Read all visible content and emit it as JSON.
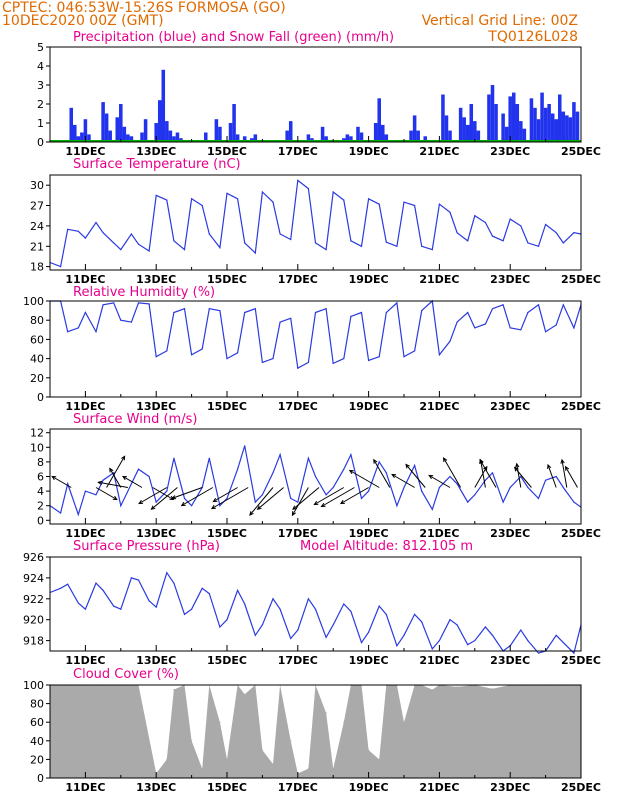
{
  "header": {
    "line1": "CPTEC:   046:53W-15:26S   FORMOSA (GO)",
    "line2": "10DEC2020 00Z (GMT)",
    "right1": "Vertical Grid Line: 00Z",
    "right2": "TQ0126L028"
  },
  "x_ticks": [
    "11DEC",
    "13DEC",
    "15DEC",
    "17DEC",
    "19DEC",
    "21DEC",
    "23DEC",
    "25DEC"
  ],
  "colors": {
    "precip": "#2233ee",
    "snow": "#00aa00",
    "line": "#2a3ae0",
    "cloud": "#aaaaaa",
    "title": "#e8008c",
    "header": "#e06a00",
    "wind_barb": "#000000"
  },
  "chart_data": [
    {
      "type": "bar",
      "title": "Precipitation (blue) and Snow Fall (green) (mm/h)",
      "ylim": [
        0,
        5
      ],
      "yticks": [
        0,
        1,
        2,
        3,
        4,
        5
      ],
      "x_range_days": [
        10,
        25
      ],
      "series": [
        {
          "name": "Precipitation (blue)",
          "x_days": [
            10.6,
            10.7,
            10.8,
            10.9,
            11.0,
            11.1,
            11.5,
            11.6,
            11.7,
            11.9,
            12.0,
            12.1,
            12.2,
            12.3,
            12.6,
            12.7,
            13.0,
            13.1,
            13.2,
            13.3,
            13.4,
            13.5,
            13.6,
            13.7,
            14.4,
            14.7,
            14.8,
            15.1,
            15.2,
            15.3,
            15.5,
            15.7,
            15.8,
            16.7,
            16.8,
            17.3,
            17.4,
            17.7,
            17.8,
            18.3,
            18.4,
            18.5,
            18.7,
            18.8,
            19.2,
            19.3,
            19.4,
            19.5,
            20.2,
            20.3,
            20.4,
            20.6,
            21.1,
            21.2,
            21.3,
            21.6,
            21.7,
            21.8,
            21.9,
            22.0,
            22.1,
            22.4,
            22.5,
            22.6,
            22.8,
            22.9,
            23.0,
            23.1,
            23.2,
            23.3,
            23.4,
            23.6,
            23.7,
            23.8,
            23.9,
            24.0,
            24.1,
            24.2,
            24.3,
            24.4,
            24.5,
            24.6,
            24.7,
            24.8,
            24.9
          ],
          "values": [
            1.8,
            0.9,
            0.3,
            0.5,
            1.2,
            0.4,
            2.1,
            1.5,
            0.6,
            1.3,
            2.0,
            0.8,
            0.4,
            0.3,
            0.5,
            1.2,
            1.0,
            2.2,
            3.8,
            1.1,
            0.6,
            0.3,
            0.5,
            0.2,
            0.5,
            1.2,
            0.8,
            1.0,
            2.0,
            0.4,
            0.3,
            0.2,
            0.4,
            0.6,
            1.1,
            0.4,
            0.2,
            0.8,
            0.3,
            0.2,
            0.4,
            0.3,
            0.8,
            0.5,
            1.0,
            2.3,
            0.9,
            0.4,
            0.6,
            1.4,
            0.6,
            0.3,
            2.5,
            1.4,
            0.6,
            1.8,
            1.3,
            0.9,
            2.0,
            1.1,
            0.6,
            2.5,
            3.0,
            2.0,
            1.5,
            0.8,
            2.4,
            2.6,
            2.0,
            1.1,
            0.7,
            2.3,
            1.8,
            1.2,
            2.6,
            1.8,
            2.0,
            1.5,
            1.2,
            2.5,
            1.6,
            1.4,
            1.3,
            2.1,
            1.6
          ]
        },
        {
          "name": "Snow Fall (green)",
          "x_days": [
            10.0,
            25.0
          ],
          "values": [
            0,
            0
          ]
        }
      ]
    },
    {
      "type": "line",
      "title": "Surface Temperature (nC)",
      "ylim": [
        17.5,
        31.5
      ],
      "yticks": [
        18,
        21,
        24,
        27,
        30
      ],
      "x_days": [
        10.0,
        10.3,
        10.5,
        10.8,
        11.0,
        11.3,
        11.5,
        11.8,
        12.0,
        12.3,
        12.5,
        12.8,
        13.0,
        13.3,
        13.5,
        13.8,
        14.0,
        14.3,
        14.5,
        14.8,
        15.0,
        15.3,
        15.5,
        15.8,
        16.0,
        16.3,
        16.5,
        16.8,
        17.0,
        17.3,
        17.5,
        17.8,
        18.0,
        18.3,
        18.5,
        18.8,
        19.0,
        19.3,
        19.5,
        19.8,
        20.0,
        20.3,
        20.5,
        20.8,
        21.0,
        21.3,
        21.5,
        21.8,
        22.0,
        22.3,
        22.5,
        22.8,
        23.0,
        23.3,
        23.5,
        23.8,
        24.0,
        24.3,
        24.5,
        24.8,
        25.0
      ],
      "values": [
        18.6,
        18.0,
        23.5,
        23.2,
        22.2,
        24.5,
        23.0,
        21.5,
        20.5,
        22.8,
        21.3,
        20.3,
        28.5,
        27.8,
        21.8,
        20.5,
        28.0,
        27.0,
        22.8,
        20.8,
        28.8,
        28.0,
        21.5,
        20.0,
        29.0,
        27.5,
        22.8,
        22.0,
        30.7,
        29.5,
        21.5,
        20.5,
        29.0,
        27.8,
        21.8,
        21.0,
        28.0,
        27.2,
        21.6,
        21.0,
        27.5,
        27.0,
        21.0,
        20.5,
        27.2,
        26.0,
        23.0,
        21.8,
        25.5,
        24.5,
        22.5,
        21.8,
        25.0,
        24.0,
        21.5,
        21.0,
        24.2,
        23.0,
        21.5,
        23.0,
        22.8
      ]
    },
    {
      "type": "line",
      "title": "Relative Humidity (%)",
      "ylim": [
        0,
        100
      ],
      "yticks": [
        0,
        20,
        40,
        60,
        80,
        100
      ],
      "x_days": [
        10.0,
        10.3,
        10.5,
        10.8,
        11.0,
        11.3,
        11.5,
        11.8,
        12.0,
        12.3,
        12.5,
        12.8,
        13.0,
        13.3,
        13.5,
        13.8,
        14.0,
        14.3,
        14.5,
        14.8,
        15.0,
        15.3,
        15.5,
        15.8,
        16.0,
        16.3,
        16.5,
        16.8,
        17.0,
        17.3,
        17.5,
        17.8,
        18.0,
        18.3,
        18.5,
        18.8,
        19.0,
        19.3,
        19.5,
        19.8,
        20.0,
        20.3,
        20.5,
        20.8,
        21.0,
        21.3,
        21.5,
        21.8,
        22.0,
        22.3,
        22.5,
        22.8,
        23.0,
        23.3,
        23.5,
        23.8,
        24.0,
        24.3,
        24.5,
        24.8,
        25.0
      ],
      "values": [
        100,
        100,
        68,
        72,
        88,
        68,
        96,
        98,
        80,
        78,
        98,
        97,
        42,
        48,
        88,
        92,
        44,
        50,
        92,
        90,
        40,
        46,
        88,
        92,
        36,
        40,
        78,
        82,
        30,
        36,
        88,
        92,
        35,
        40,
        84,
        88,
        38,
        42,
        88,
        98,
        42,
        48,
        90,
        100,
        44,
        58,
        78,
        88,
        72,
        76,
        92,
        96,
        72,
        70,
        88,
        96,
        68,
        75,
        96,
        72,
        96
      ]
    },
    {
      "type": "line",
      "title": "Surface Wind (m/s)",
      "ylim": [
        -0.5,
        12.5
      ],
      "yticks": [
        0,
        2,
        4,
        6,
        8,
        10,
        12
      ],
      "x_days": [
        10.0,
        10.3,
        10.5,
        10.8,
        11.0,
        11.3,
        11.5,
        11.8,
        12.0,
        12.3,
        12.5,
        12.8,
        13.0,
        13.3,
        13.5,
        13.8,
        14.0,
        14.3,
        14.5,
        14.8,
        15.0,
        15.3,
        15.5,
        15.8,
        16.0,
        16.3,
        16.5,
        16.8,
        17.0,
        17.3,
        17.5,
        17.8,
        18.0,
        18.3,
        18.5,
        18.8,
        19.0,
        19.3,
        19.5,
        19.8,
        20.0,
        20.3,
        20.5,
        20.8,
        21.0,
        21.3,
        21.5,
        21.8,
        22.0,
        22.3,
        22.5,
        22.8,
        23.0,
        23.3,
        23.5,
        23.8,
        24.0,
        24.3,
        24.5,
        24.8,
        25.0
      ],
      "values": [
        2.0,
        1.0,
        5.0,
        0.8,
        4.0,
        3.5,
        5.5,
        6.5,
        2.0,
        5.0,
        7.0,
        6.0,
        2.5,
        4.0,
        8.5,
        3.0,
        2.0,
        4.5,
        8.5,
        2.0,
        3.0,
        7.0,
        10.2,
        2.5,
        3.5,
        6.5,
        9.0,
        3.0,
        2.5,
        8.5,
        6.0,
        3.5,
        4.5,
        7.0,
        9.0,
        3.0,
        4.0,
        8.0,
        6.5,
        2.0,
        4.5,
        7.5,
        4.0,
        1.5,
        4.5,
        6.0,
        5.0,
        2.5,
        3.5,
        5.5,
        6.5,
        2.5,
        4.5,
        6.0,
        4.5,
        3.0,
        5.5,
        6.0,
        4.5,
        2.5,
        1.8
      ],
      "barbs_x_days": [
        10.6,
        11.3,
        11.6,
        12.0,
        12.2,
        12.6,
        12.9,
        13.3,
        13.6,
        14.3,
        14.6,
        15.3,
        15.6,
        16.3,
        16.6,
        17.3,
        17.6,
        18.3,
        18.6,
        19.0,
        19.3,
        19.6,
        20.3,
        20.6,
        21.3,
        21.6,
        22.0,
        22.3,
        22.6,
        23.3,
        23.6,
        24.3,
        24.6,
        24.9
      ],
      "barbs_speed": [
        4.0,
        4.5,
        7.5,
        4.0,
        6.0,
        4.0,
        4.5,
        6.5,
        7.0,
        6.5,
        7.5,
        5.5,
        9.0,
        7.5,
        7.0,
        6.5,
        7.0,
        7.0,
        8.0,
        6.5,
        7.0,
        6.5,
        5.0,
        6.0,
        4.5,
        7.0,
        4.5,
        5.5,
        6.5,
        4.5,
        5.0,
        4.5,
        5.5,
        4.5
      ],
      "barbs_dir_deg": [
        150,
        330,
        60,
        120,
        170,
        150,
        330,
        210,
        220,
        200,
        210,
        210,
        210,
        230,
        220,
        240,
        220,
        210,
        210,
        210,
        150,
        120,
        150,
        130,
        150,
        120,
        60,
        100,
        120,
        100,
        130,
        110,
        100,
        120
      ]
    },
    {
      "type": "line",
      "title": "Surface Pressure (hPa)",
      "annotation": "Model Altitude: 812.105 m",
      "ylim": [
        917,
        926
      ],
      "yticks": [
        918,
        920,
        922,
        924,
        926
      ],
      "x_days": [
        10.0,
        10.3,
        10.5,
        10.8,
        11.0,
        11.3,
        11.5,
        11.8,
        12.0,
        12.3,
        12.5,
        12.8,
        13.0,
        13.3,
        13.5,
        13.8,
        14.0,
        14.3,
        14.5,
        14.8,
        15.0,
        15.3,
        15.5,
        15.8,
        16.0,
        16.3,
        16.5,
        16.8,
        17.0,
        17.3,
        17.5,
        17.8,
        18.0,
        18.3,
        18.5,
        18.8,
        19.0,
        19.3,
        19.5,
        19.8,
        20.0,
        20.3,
        20.5,
        20.8,
        21.0,
        21.3,
        21.5,
        21.8,
        22.0,
        22.3,
        22.5,
        22.8,
        23.0,
        23.3,
        23.5,
        23.8,
        24.0,
        24.3,
        24.5,
        24.8,
        25.0
      ],
      "values": [
        922.6,
        923.0,
        923.4,
        921.6,
        921.0,
        923.5,
        922.8,
        921.3,
        921.0,
        924.0,
        923.8,
        921.8,
        921.2,
        924.5,
        923.5,
        920.5,
        921.0,
        923.0,
        922.5,
        919.3,
        920.0,
        922.8,
        921.5,
        918.5,
        919.5,
        922.0,
        921.0,
        918.2,
        919.0,
        922.0,
        921.0,
        918.3,
        919.5,
        921.5,
        920.8,
        917.8,
        918.8,
        921.3,
        920.5,
        917.5,
        918.5,
        920.5,
        919.8,
        917.2,
        918.0,
        920.0,
        919.5,
        917.6,
        918.0,
        919.3,
        918.5,
        917.0,
        917.5,
        919.0,
        918.0,
        916.8,
        917.0,
        918.5,
        917.8,
        916.8,
        919.5
      ]
    },
    {
      "type": "bar",
      "title": "Cloud Cover (%)",
      "ylim": [
        0,
        100
      ],
      "yticks": [
        0,
        20,
        40,
        60,
        80,
        100
      ],
      "x_days": [
        10.0,
        10.5,
        11.0,
        11.5,
        12.0,
        12.5,
        13.0,
        13.3,
        13.5,
        13.8,
        14.0,
        14.3,
        14.5,
        14.8,
        15.0,
        15.3,
        15.5,
        15.8,
        16.0,
        16.3,
        16.5,
        16.8,
        17.0,
        17.3,
        17.5,
        17.8,
        18.0,
        18.3,
        18.5,
        18.8,
        19.0,
        19.3,
        19.5,
        19.8,
        20.0,
        20.3,
        20.5,
        20.8,
        21.0,
        21.5,
        22.0,
        22.5,
        23.0,
        23.5,
        24.0,
        24.5,
        25.0
      ],
      "values": [
        100,
        100,
        100,
        100,
        100,
        100,
        5,
        20,
        95,
        100,
        40,
        10,
        100,
        60,
        20,
        100,
        90,
        100,
        30,
        15,
        100,
        40,
        5,
        10,
        100,
        70,
        10,
        60,
        100,
        100,
        30,
        20,
        100,
        100,
        60,
        100,
        100,
        95,
        100,
        98,
        100,
        96,
        100,
        100,
        100,
        100,
        100
      ]
    }
  ]
}
